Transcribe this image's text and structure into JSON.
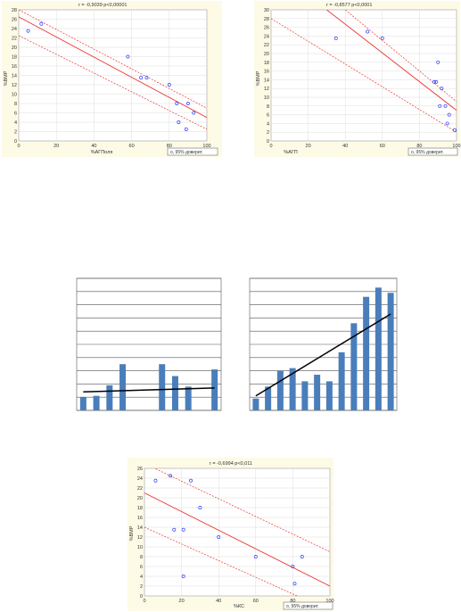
{
  "chart_data": [
    {
      "type": "scatter",
      "stat_text": "r = -0,9039 p<0,00001",
      "xlabel": "%АГПоля",
      "ylabel": "%ВМР",
      "legend": "о, 95% доверит.",
      "xlim": [
        0,
        100
      ],
      "ylim": [
        0,
        28
      ],
      "xticks": [
        0,
        20,
        40,
        60,
        80,
        100
      ],
      "yticks": [
        0,
        2,
        4,
        6,
        8,
        10,
        12,
        14,
        16,
        18,
        20,
        22,
        24,
        26,
        28
      ],
      "points": [
        [
          5,
          23.5
        ],
        [
          12,
          25
        ],
        [
          58,
          18
        ],
        [
          65,
          13.5
        ],
        [
          68,
          13.5
        ],
        [
          80,
          12
        ],
        [
          84,
          8
        ],
        [
          85,
          4
        ],
        [
          89,
          2.5
        ],
        [
          90,
          8
        ],
        [
          93,
          6
        ]
      ],
      "fit": [
        [
          0,
          26.5
        ],
        [
          100,
          5
        ]
      ],
      "ci_upper": [
        [
          0,
          28
        ],
        [
          100,
          7
        ]
      ],
      "ci_lower": [
        [
          0,
          22.5
        ],
        [
          100,
          2.5
        ]
      ]
    },
    {
      "type": "scatter",
      "stat_text": "r = -0,8577 p<0,0001",
      "xlabel": "%АГП",
      "ylabel": "%ВМР",
      "legend": "о, 95% доверит.",
      "xlim": [
        0,
        100
      ],
      "ylim": [
        0,
        30
      ],
      "xticks": [
        0,
        20,
        40,
        60,
        80,
        100
      ],
      "yticks": [
        0,
        2,
        4,
        6,
        8,
        10,
        12,
        14,
        16,
        18,
        20,
        22,
        24,
        26,
        28,
        30
      ],
      "points": [
        [
          35,
          23.5
        ],
        [
          52,
          25
        ],
        [
          60,
          23.5
        ],
        [
          88,
          13.5
        ],
        [
          89,
          13.5
        ],
        [
          90,
          18
        ],
        [
          91,
          8
        ],
        [
          92,
          12
        ],
        [
          94,
          8
        ],
        [
          95,
          4
        ],
        [
          96,
          6
        ],
        [
          99,
          2.5
        ]
      ],
      "fit": [
        [
          30,
          30
        ],
        [
          100,
          7
        ]
      ],
      "ci_upper": [
        [
          40,
          30
        ],
        [
          100,
          9
        ]
      ],
      "ci_lower": [
        [
          0,
          28
        ],
        [
          100,
          2
        ]
      ]
    },
    {
      "type": "bar",
      "ylim": [
        0,
        10
      ],
      "values": [
        1,
        1.1,
        1.9,
        3.5,
        0,
        0,
        3.5,
        2.6,
        1.8,
        0,
        3.1
      ],
      "trend": [
        1.4,
        1.7
      ]
    },
    {
      "type": "bar",
      "ylim": [
        0,
        10
      ],
      "values": [
        0.9,
        1.8,
        3,
        3.2,
        2.2,
        2.7,
        2.2,
        4.4,
        6.6,
        8.6,
        9.3,
        8.9
      ],
      "trend": [
        1.1,
        7.3
      ]
    },
    {
      "type": "scatter",
      "stat_text": "r = -0,6994 p<0,011",
      "xlabel": "%КС",
      "ylabel": "%ВМР",
      "legend": "о, 95% доверит.",
      "xlim": [
        0,
        100
      ],
      "ylim": [
        0,
        26
      ],
      "xticks": [
        0,
        20,
        40,
        60,
        80,
        100
      ],
      "yticks": [
        0,
        2,
        4,
        6,
        8,
        10,
        12,
        14,
        16,
        18,
        20,
        22,
        24,
        26
      ],
      "points": [
        [
          6,
          23.5
        ],
        [
          14,
          24.5
        ],
        [
          16,
          13.5
        ],
        [
          21,
          13.5
        ],
        [
          21,
          4
        ],
        [
          25,
          23.5
        ],
        [
          30,
          18
        ],
        [
          40,
          12
        ],
        [
          60,
          8
        ],
        [
          80,
          6
        ],
        [
          81,
          2.5
        ],
        [
          85,
          8
        ]
      ],
      "fit": [
        [
          0,
          21
        ],
        [
          100,
          2
        ]
      ],
      "ci_upper": [
        [
          0,
          27
        ],
        [
          100,
          9
        ]
      ],
      "ci_lower": [
        [
          0,
          14
        ],
        [
          100,
          -3
        ]
      ]
    }
  ]
}
